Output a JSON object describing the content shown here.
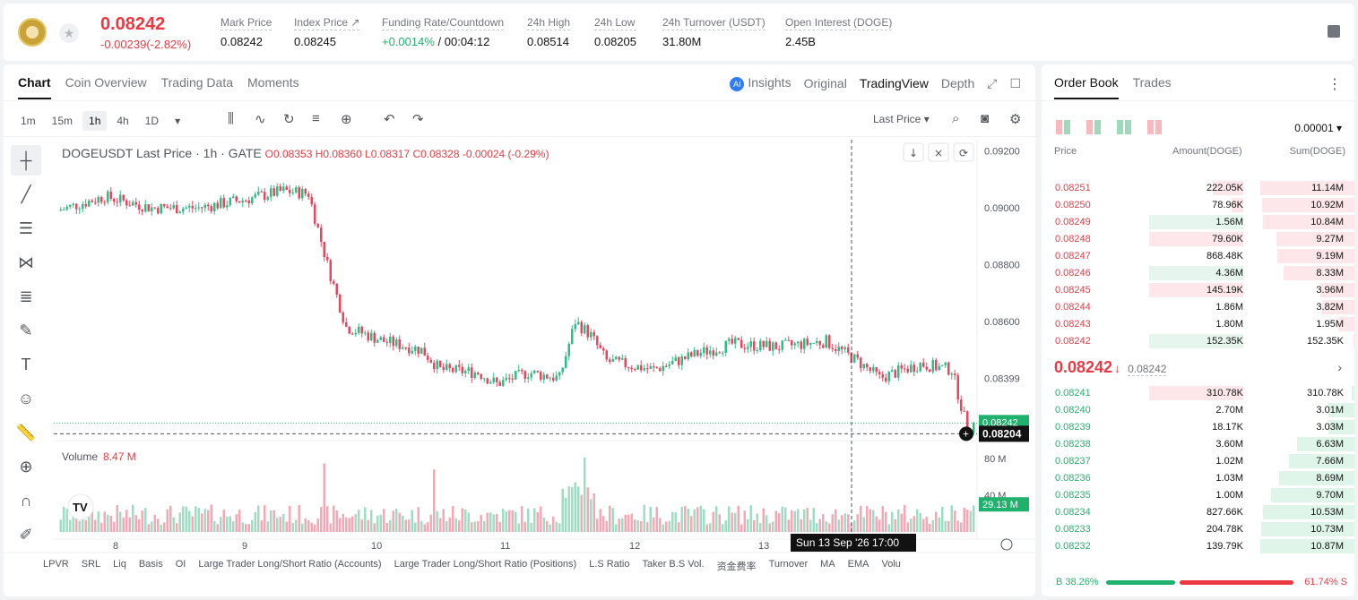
{
  "header": {
    "price": "0.08242",
    "change": "-0.00239(-2.82%)",
    "stats": [
      {
        "label": "Mark Price",
        "value": "0.08242"
      },
      {
        "label": "Index Price ↗",
        "value": "0.08245"
      },
      {
        "label": "Funding Rate/Countdown",
        "value_green": "+0.0014%",
        "value": " / 00:04:12"
      },
      {
        "label": "24h High",
        "value": "0.08514"
      },
      {
        "label": "24h Low",
        "value": "0.08205"
      },
      {
        "label": "24h Turnover (USDT)",
        "value": "31.80M"
      },
      {
        "label": "Open Interest (DOGE)",
        "value": "2.45B"
      }
    ]
  },
  "chart_tabs": [
    "Chart",
    "Coin Overview",
    "Trading Data",
    "Moments"
  ],
  "view_tabs": {
    "insights": "Insights",
    "original": "Original",
    "tradingview": "TradingView",
    "depth": "Depth",
    "ai_badge": "AI"
  },
  "timeframes": [
    "1m",
    "15m",
    "1h",
    "4h",
    "1D"
  ],
  "last_price_select": "Last Price",
  "legend": {
    "symbol": "DOGEUSDT Last Price · 1h · GATE",
    "ohlc": "O0.08353 H0.08360 L0.08317 C0.08328 -0.00024 (-0.29%)"
  },
  "volume": {
    "label": "Volume",
    "value": "8.47 M",
    "axis_top": "80 M",
    "axis_mid": "40 M",
    "current": "29.13 M"
  },
  "price_axis": [
    "0.09200",
    "0.09000",
    "0.08800",
    "0.08600",
    "0.08399"
  ],
  "price_markers": {
    "last": "0.08242",
    "crosshair": "0.08204"
  },
  "date_axis": [
    "8",
    "9",
    "10",
    "11",
    "12",
    "13"
  ],
  "crosshair_time": "Sun 13 Sep '26   17:00",
  "indicators": [
    "LPVR",
    "SRL",
    "Liq",
    "Basis",
    "OI",
    "Large Trader Long/Short Ratio (Accounts)",
    "Large Trader Long/Short Ratio (Positions)",
    "L.S Ratio",
    "Taker B.S Vol.",
    "资金费率",
    "Turnover",
    "MA",
    "EMA",
    "Volu"
  ],
  "orderbook": {
    "tabs": [
      "Order Book",
      "Trades"
    ],
    "precision": "0.00001",
    "columns": {
      "price": "Price",
      "amount": "Amount(DOGE)",
      "sum": "Sum(DOGE)"
    },
    "asks": [
      {
        "price": "0.08251",
        "amount": "222.05K",
        "sum": "11.14M",
        "bar_fill": 0.16,
        "sum_fill": 1.0
      },
      {
        "price": "0.08250",
        "amount": "78.96K",
        "sum": "10.92M",
        "bar_fill": 0.06,
        "sum_fill": 0.98
      },
      {
        "price": "0.08249",
        "amount": "1.56M",
        "sum": "10.84M",
        "bar_fill": 0.5,
        "sum_fill": 0.97,
        "green": true
      },
      {
        "price": "0.08248",
        "amount": "79.60K",
        "sum": "9.27M",
        "bar_fill": 0.5,
        "sum_fill": 0.83
      },
      {
        "price": "0.08247",
        "amount": "868.48K",
        "sum": "9.19M",
        "bar_fill": 0.0,
        "sum_fill": 0.82
      },
      {
        "price": "0.08246",
        "amount": "4.36M",
        "sum": "8.33M",
        "bar_fill": 0.5,
        "sum_fill": 0.75,
        "green": true
      },
      {
        "price": "0.08245",
        "amount": "145.19K",
        "sum": "3.96M",
        "bar_fill": 0.5,
        "sum_fill": 0.36
      },
      {
        "price": "0.08244",
        "amount": "1.86M",
        "sum": "3.82M",
        "bar_fill": 0.0,
        "sum_fill": 0.34
      },
      {
        "price": "0.08243",
        "amount": "1.80M",
        "sum": "1.95M",
        "bar_fill": 0.0,
        "sum_fill": 0.17
      },
      {
        "price": "0.08242",
        "amount": "152.35K",
        "sum": "152.35K",
        "bar_fill": 0.5,
        "sum_fill": 0.01,
        "green": true
      }
    ],
    "mid": {
      "price": "0.08242",
      "arrow": "↓",
      "mark": "0.08242",
      "chevron": "›"
    },
    "bids": [
      {
        "price": "0.08241",
        "amount": "310.78K",
        "sum": "310.78K",
        "bar_fill": 0.5,
        "sum_fill": 0.03,
        "red": true
      },
      {
        "price": "0.08240",
        "amount": "2.70M",
        "sum": "3.01M",
        "bar_fill": 0.0,
        "sum_fill": 0.28
      },
      {
        "price": "0.08239",
        "amount": "18.17K",
        "sum": "3.03M",
        "bar_fill": 0.0,
        "sum_fill": 0.28
      },
      {
        "price": "0.08238",
        "amount": "3.60M",
        "sum": "6.63M",
        "bar_fill": 0.0,
        "sum_fill": 0.61
      },
      {
        "price": "0.08237",
        "amount": "1.02M",
        "sum": "7.66M",
        "bar_fill": 0.0,
        "sum_fill": 0.7
      },
      {
        "price": "0.08236",
        "amount": "1.03M",
        "sum": "8.69M",
        "bar_fill": 0.0,
        "sum_fill": 0.8
      },
      {
        "price": "0.08235",
        "amount": "1.00M",
        "sum": "9.70M",
        "bar_fill": 0.0,
        "sum_fill": 0.89
      },
      {
        "price": "0.08234",
        "amount": "827.66K",
        "sum": "10.53M",
        "bar_fill": 0.0,
        "sum_fill": 0.97
      },
      {
        "price": "0.08233",
        "amount": "204.78K",
        "sum": "10.73M",
        "bar_fill": 0.0,
        "sum_fill": 0.99
      },
      {
        "price": "0.08232",
        "amount": "139.79K",
        "sum": "10.87M",
        "bar_fill": 0.0,
        "sum_fill": 1.0
      }
    ],
    "ratio": {
      "buy": "B 38.26%",
      "sell": "61.74% S",
      "buy_value": 38.26
    }
  },
  "colors": {
    "up": "#20b26c",
    "down": "#ea3943",
    "up_candle": "#2ebd85",
    "down_candle": "#e8465c",
    "up_vol": "#9fdcc4",
    "down_vol": "#f5a8b4"
  }
}
